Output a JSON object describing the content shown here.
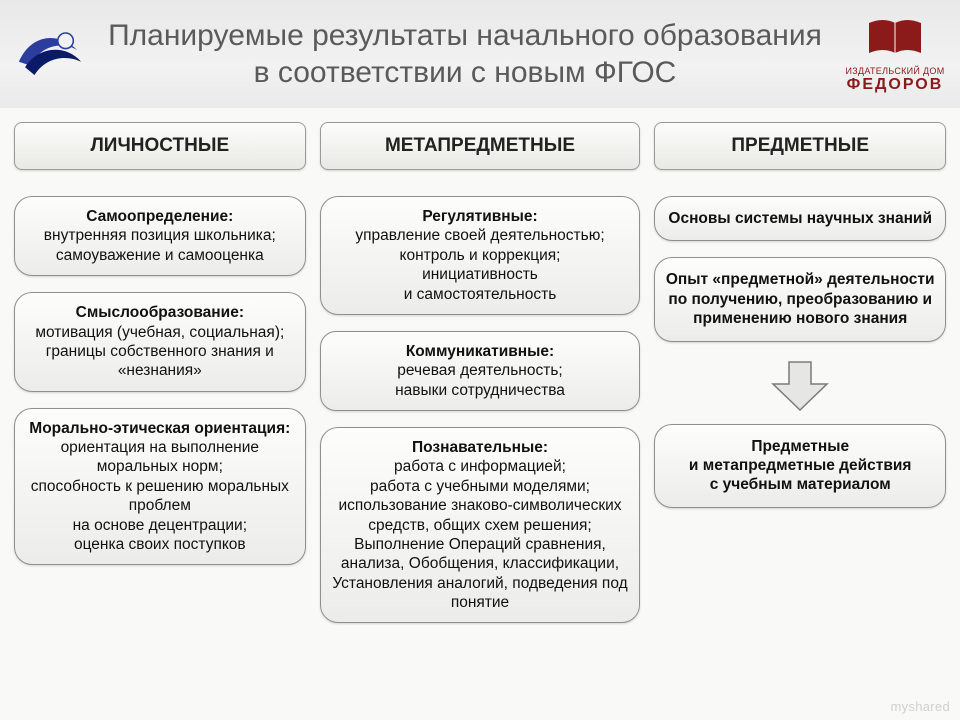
{
  "header": {
    "title": "Планируемые результаты начального образования в соответствии с новым ФГОС",
    "publisher_small": "ИЗДАТЕЛЬСКИЙ ДОМ",
    "publisher_name": "ФЕДОРОВ"
  },
  "columns": {
    "col1": {
      "header": "ЛИЧНОСТНЫЕ",
      "box1": {
        "title": "Самоопределение:",
        "body": "внутренняя позиция школьника;\nсамоуважение и самооценка"
      },
      "box2": {
        "title": "Смыслообразование:",
        "body": "мотивация (учебная, социальная);\nграницы собственного знания и «незнания»"
      },
      "box3": {
        "title": "Морально-этическая ориентация:",
        "body": "ориентация на выполнение моральных норм;\nспособность к решению моральных проблем\nна основе децентрации;\nоценка своих поступков"
      }
    },
    "col2": {
      "header": "МЕТАПРЕДМЕТНЫЕ",
      "box1": {
        "title": "Регулятивные:",
        "body": "управление своей деятельностью;\nконтроль и коррекция;\nинициативность\nи самостоятельность"
      },
      "box2": {
        "title": "Коммуникативные:",
        "body": "речевая деятельность;\nнавыки сотрудничества"
      },
      "box3": {
        "title": "Познавательные:",
        "body": "работа с информацией;\nработа с учебными моделями;\nиспользование знаково-символических средств, общих схем решения; Выполнение Операций сравнения, анализа, Обобщения, классификации, Установления аналогий, подведения под понятие"
      }
    },
    "col3": {
      "header": "ПРЕДМЕТНЫЕ",
      "box1": {
        "body": "Основы системы научных знаний"
      },
      "box2": {
        "body": "Опыт «предметной» деятельности по получению, преобразованию и применению нового знания"
      },
      "box3": {
        "body": "Предметные\nи метапредметные действия\nс учебным материалом"
      }
    }
  },
  "watermark": "myshared",
  "style": {
    "bg": "#f9f9f8",
    "header_grad_top": "#e8e8e8",
    "header_grad_bot": "#eaeaea",
    "title_color": "#5a5a5a",
    "box_border": "#8f8f8d",
    "box_grad_top": "#fdfdfc",
    "box_grad_bot": "#ececea",
    "arrow_fill": "#e6e6e4",
    "arrow_stroke": "#7a7a78",
    "brand_color": "#8b1a1a",
    "logo_blue": "#2b3e9e",
    "logo_darkblue": "#0a1a66"
  }
}
